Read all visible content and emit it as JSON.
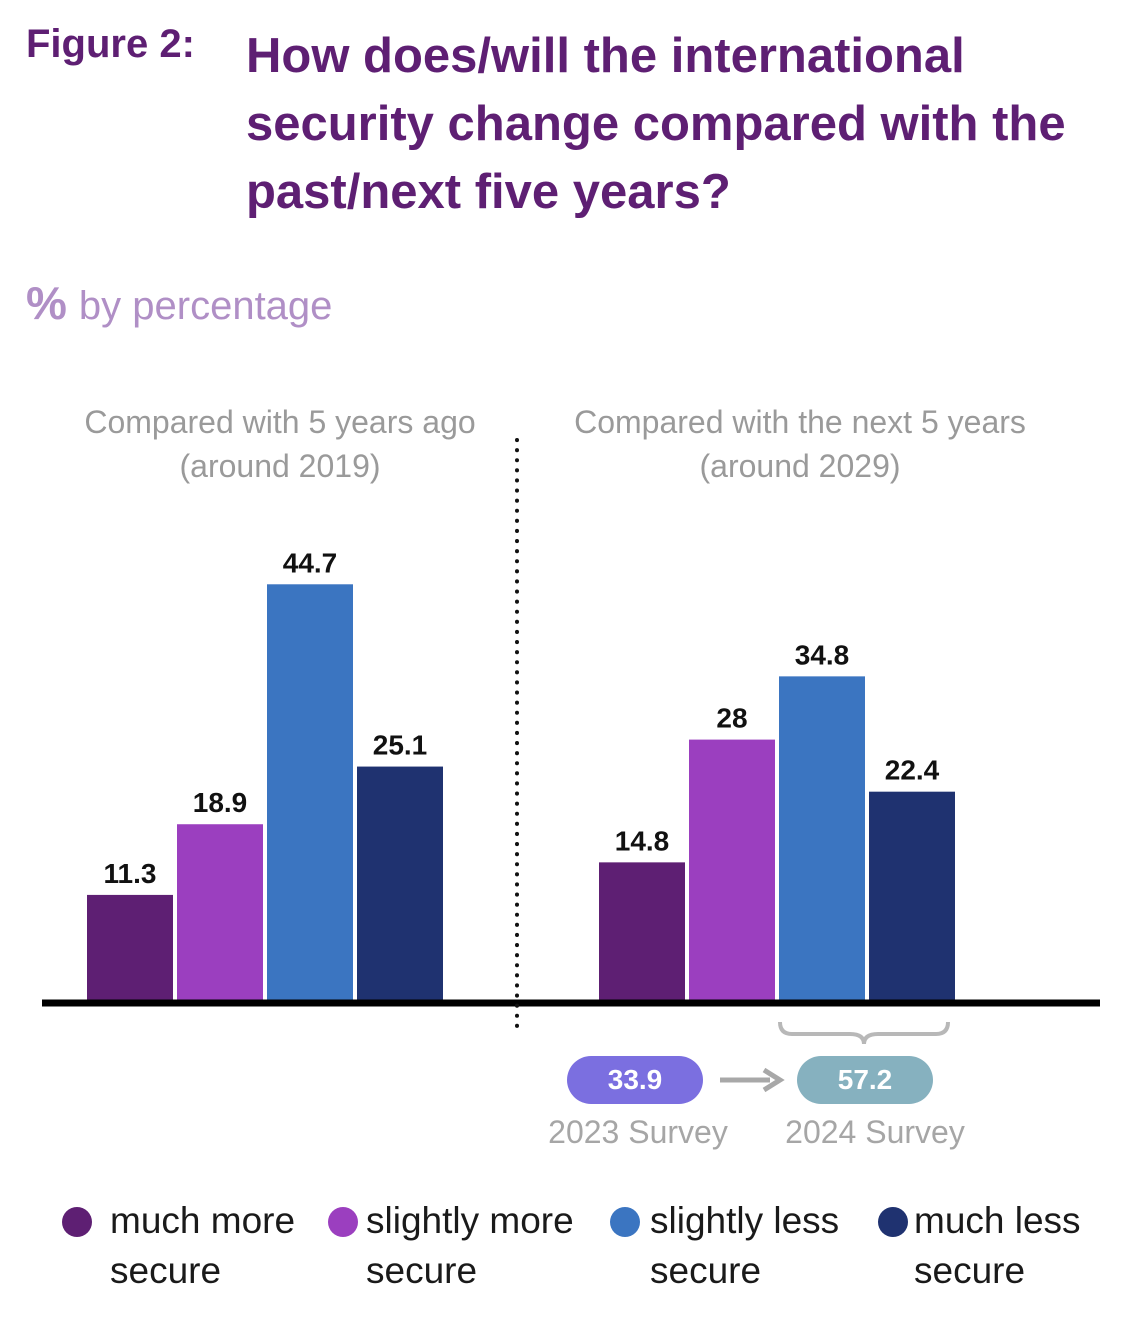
{
  "header": {
    "figure_label": "Figure 2:",
    "title": "How does/will the international security change compared with the past/next five years?",
    "unit_symbol": "%",
    "unit_text": "by percentage"
  },
  "panels": [
    {
      "title_line1": "Compared with 5 years ago",
      "title_line2": "(around 2019)"
    },
    {
      "title_line1": "Compared with the next 5 years",
      "title_line2": "(around 2029)"
    }
  ],
  "chart_data": {
    "type": "bar",
    "categories": [
      "much more secure",
      "slightly more secure",
      "slightly less secure",
      "much less secure"
    ],
    "groups": [
      {
        "name": "Compared with 5 years ago (around 2019)",
        "values": [
          11.3,
          18.9,
          44.7,
          25.1
        ]
      },
      {
        "name": "Compared with the next 5 years (around 2029)",
        "values": [
          14.8,
          28,
          34.8,
          22.4
        ]
      }
    ],
    "colors": [
      "#5e1f73",
      "#9b3fbf",
      "#3b75c1",
      "#1f3270"
    ],
    "value_labels": true,
    "legend_position": "bottom"
  },
  "summary": {
    "left": {
      "value": "33.9",
      "label": "2023 Survey",
      "color": "#7b6fe0"
    },
    "right": {
      "value": "57.2",
      "label": "2024 Survey",
      "color": "#86b1bf"
    }
  },
  "legend": [
    {
      "line1": "much more",
      "line2": "secure",
      "color": "#5e1f73"
    },
    {
      "line1": "slightly more",
      "line2": "secure",
      "color": "#9b3fbf"
    },
    {
      "line1": "slightly less",
      "line2": "secure",
      "color": "#3b75c1"
    },
    {
      "line1": "much less",
      "line2": "secure",
      "color": "#1f3270"
    }
  ]
}
